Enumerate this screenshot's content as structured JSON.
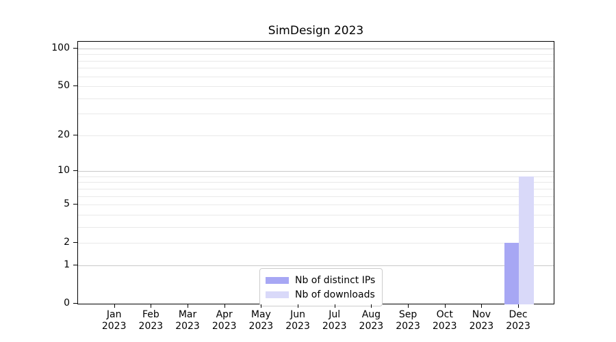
{
  "figure": {
    "title": "SimDesign 2023"
  },
  "chart_data": {
    "type": "bar",
    "title": "SimDesign 2023",
    "categories": [
      "Jan",
      "Feb",
      "Mar",
      "Apr",
      "May",
      "Jun",
      "Jul",
      "Aug",
      "Sep",
      "Oct",
      "Nov",
      "Dec"
    ],
    "x_tick_year": "2023",
    "series": [
      {
        "key": "distinct-ips",
        "name": "Nb of distinct IPs",
        "color": "#a7a7f4",
        "values": [
          0,
          0,
          0,
          0,
          0,
          0,
          0,
          0,
          0,
          0,
          0,
          2
        ]
      },
      {
        "key": "downloads",
        "name": "Nb of downloads",
        "color": "#d9d9f9",
        "values": [
          0,
          0,
          0,
          0,
          0,
          0,
          0,
          0,
          0,
          0,
          0,
          9
        ]
      }
    ],
    "y_axis": {
      "scale": "log1p",
      "labeled_ticks": [
        0,
        1,
        2,
        5,
        10,
        20,
        50,
        100
      ],
      "major_gridlines": [
        1,
        10,
        100
      ],
      "minor_gridlines": [
        2,
        3,
        4,
        5,
        6,
        7,
        8,
        9,
        20,
        30,
        40,
        50,
        60,
        70,
        80,
        90
      ],
      "ylim": [
        0,
        115
      ]
    },
    "grid": "horizontal",
    "legend": {
      "position": "lower center",
      "entries": [
        "Nb of distinct IPs",
        "Nb of downloads"
      ]
    }
  },
  "colors": {
    "grid_major": "#c9c9c9",
    "grid_minor": "#e9e9e9",
    "spine": "#000000",
    "legend_border": "#cccccc",
    "text": "#000000",
    "background": "#ffffff"
  }
}
